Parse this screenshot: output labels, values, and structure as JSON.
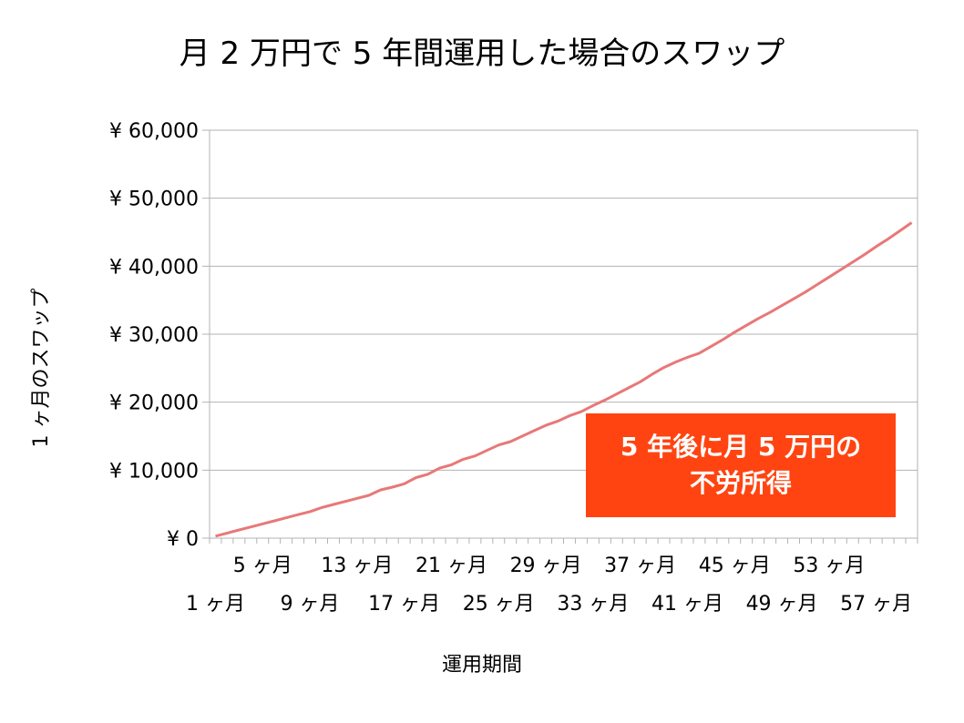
{
  "chart_data": {
    "type": "line",
    "title": "月 2 万円で 5 年間運用した場合のスワップ",
    "xlabel": "運用期間",
    "ylabel": "1 ヶ月のスワップ",
    "ylim": [
      0,
      60000
    ],
    "y_ticks": [
      0,
      10000,
      20000,
      30000,
      40000,
      50000,
      60000
    ],
    "y_tick_labels": [
      "¥ 0",
      "¥ 10,000",
      "¥ 20,000",
      "¥ 30,000",
      "¥ 40,000",
      "¥ 50,000",
      "¥ 60,000"
    ],
    "x_tick_labels_upper": [
      "5 ヶ月",
      "13 ヶ月",
      "21 ヶ月",
      "29 ヶ月",
      "37 ヶ月",
      "45 ヶ月",
      "53 ヶ月"
    ],
    "x_tick_labels_lower": [
      "1 ヶ月",
      "9 ヶ月",
      "17 ヶ月",
      "25 ヶ月",
      "33 ヶ月",
      "41 ヶ月",
      "49 ヶ月",
      "57 ヶ月"
    ],
    "grid": true,
    "series": [
      {
        "color": "#e87878",
        "x": [
          1,
          2,
          3,
          4,
          5,
          6,
          7,
          8,
          9,
          10,
          11,
          12,
          13,
          14,
          15,
          16,
          17,
          18,
          19,
          20,
          21,
          22,
          23,
          24,
          25,
          26,
          27,
          28,
          29,
          30,
          31,
          32,
          33,
          34,
          35,
          36,
          37,
          38,
          39,
          40,
          41,
          42,
          43,
          44,
          45,
          46,
          47,
          48,
          49,
          50,
          51,
          52,
          53,
          54,
          55,
          56,
          57,
          58,
          59,
          60
        ],
        "values": [
          300,
          750,
          1200,
          1650,
          2100,
          2550,
          3000,
          3450,
          3900,
          4500,
          4950,
          5400,
          5850,
          6300,
          7100,
          7500,
          8000,
          8900,
          9400,
          10300,
          10800,
          11600,
          12100,
          12900,
          13700,
          14200,
          15000,
          15800,
          16600,
          17200,
          18000,
          18600,
          19500,
          20300,
          21200,
          22100,
          23000,
          24100,
          25100,
          25900,
          26600,
          27200,
          28200,
          29200,
          30300,
          31300,
          32300,
          33200,
          34200,
          35200,
          36200,
          37300,
          38400,
          39500,
          40600,
          41700,
          42900,
          44000,
          45200,
          46400
        ]
      }
    ],
    "x_count": 60
  },
  "callout": {
    "line1": "5 年後に月 5 万円の",
    "line2": "不労所得",
    "color": "#ff4411"
  }
}
